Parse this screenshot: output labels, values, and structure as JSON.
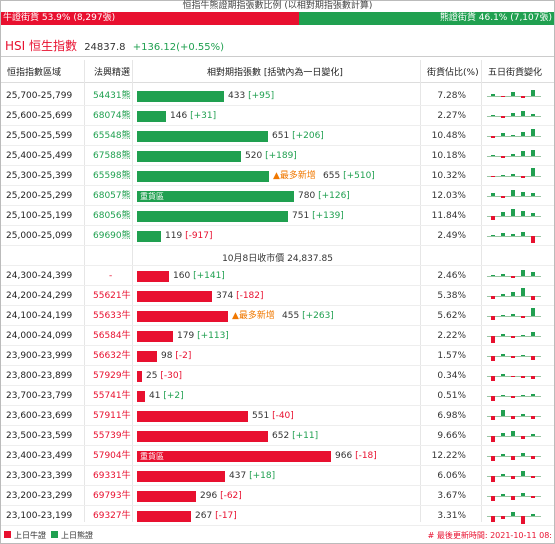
{
  "ratio": {
    "title": "恒指牛熊證期指張數比例 (以相對期指張數計算)",
    "bull_label": "牛證街貨 53.9% (8,297張)",
    "bear_label": "熊證街貨 46.1% (7,107張)",
    "bull_pct": 53.9,
    "colors": {
      "bull": "#e8102f",
      "bear": "#20a050"
    }
  },
  "index": {
    "name": "HSI 恒生指數",
    "value": "24837.8",
    "change": "+136.12(+0.55%)"
  },
  "headers": {
    "range": "恒指指數區域",
    "warrant": "法興精選",
    "contracts": "相對期指張數 [括號內為一日變化]",
    "ratio": "街貨佔比(%)",
    "trend": "五日街貨變化"
  },
  "close_label": "10月8日收市價 24,837.85",
  "bear_rows": [
    {
      "range": "25,700-25,799",
      "warrant": "54431熊",
      "qty": "433",
      "delta": "[+95]",
      "ratio": "7.28%",
      "bar": 433,
      "mini": [
        2,
        -1,
        4,
        -2,
        6
      ]
    },
    {
      "range": "25,600-25,699",
      "warrant": "68074熊",
      "qty": "146",
      "delta": "[+31]",
      "ratio": "2.27%",
      "bar": 146,
      "mini": [
        1,
        -2,
        3,
        5,
        2
      ]
    },
    {
      "range": "25,500-25,599",
      "warrant": "65548熊",
      "qty": "651",
      "delta": "[+206]",
      "ratio": "10.48%",
      "bar": 651,
      "mini": [
        -2,
        3,
        1,
        4,
        7
      ]
    },
    {
      "range": "25,400-25,499",
      "warrant": "67588熊",
      "qty": "520",
      "delta": "[+189]",
      "ratio": "10.18%",
      "bar": 520,
      "mini": [
        1,
        -2,
        2,
        5,
        6
      ]
    },
    {
      "range": "25,300-25,399",
      "warrant": "65598熊",
      "qty": "655",
      "delta": "[+510]",
      "ratio": "10.32%",
      "bar": 655,
      "tag": "▲最多新增",
      "mini": [
        -1,
        1,
        2,
        -2,
        8
      ]
    },
    {
      "range": "25,200-25,299",
      "warrant": "68057熊",
      "qty": "780",
      "delta": "[+126]",
      "ratio": "12.03%",
      "bar": 780,
      "heavy": "重貨區",
      "mini": [
        3,
        -2,
        6,
        4,
        3
      ]
    },
    {
      "range": "25,100-25,199",
      "warrant": "68056熊",
      "qty": "751",
      "delta": "[+139]",
      "ratio": "11.84%",
      "bar": 751,
      "mini": [
        -4,
        4,
        7,
        5,
        3
      ]
    },
    {
      "range": "25,000-25,099",
      "warrant": "69690熊",
      "qty": "119",
      "delta": "[-917]",
      "ratio": "2.49%",
      "bar": 119,
      "mini": [
        1,
        3,
        2,
        4,
        -7
      ]
    }
  ],
  "bull_rows": [
    {
      "range": "24,300-24,399",
      "warrant": "-",
      "qty": "160",
      "delta": "[+141]",
      "ratio": "2.46%",
      "bar": 160,
      "mini": [
        1,
        2,
        -2,
        6,
        4
      ]
    },
    {
      "range": "24,200-24,299",
      "warrant": "55621牛",
      "qty": "374",
      "delta": "[-182]",
      "ratio": "5.38%",
      "bar": 374,
      "mini": [
        -3,
        2,
        4,
        8,
        -4
      ]
    },
    {
      "range": "24,100-24,199",
      "warrant": "55633牛",
      "qty": "455",
      "delta": "[+263]",
      "ratio": "5.62%",
      "bar": 455,
      "tag": "▲最多新增",
      "mini": [
        -4,
        1,
        2,
        -2,
        8
      ]
    },
    {
      "range": "24,000-24,099",
      "warrant": "56584牛",
      "qty": "179",
      "delta": "[+113]",
      "ratio": "2.22%",
      "bar": 179,
      "mini": [
        -7,
        2,
        -2,
        1,
        4
      ]
    },
    {
      "range": "23,900-23,999",
      "warrant": "56632牛",
      "qty": "98",
      "delta": "[-2]",
      "ratio": "1.57%",
      "bar": 98,
      "mini": [
        -5,
        2,
        -2,
        1,
        -4
      ]
    },
    {
      "range": "23,800-23,899",
      "warrant": "57929牛",
      "qty": "25",
      "delta": "[-30]",
      "ratio": "0.34%",
      "bar": 25,
      "mini": [
        -5,
        2,
        -1,
        -2,
        -3
      ]
    },
    {
      "range": "23,700-23,799",
      "warrant": "55741牛",
      "qty": "41",
      "delta": "[+2]",
      "ratio": "0.51%",
      "bar": 41,
      "mini": [
        -5,
        1,
        -2,
        1,
        2
      ]
    },
    {
      "range": "23,600-23,699",
      "warrant": "57911牛",
      "qty": "551",
      "delta": "[-40]",
      "ratio": "6.98%",
      "bar": 551,
      "mini": [
        -4,
        6,
        -3,
        2,
        -3
      ]
    },
    {
      "range": "23,500-23,599",
      "warrant": "55739牛",
      "qty": "652",
      "delta": "[+11]",
      "ratio": "9.66%",
      "bar": 652,
      "mini": [
        -6,
        3,
        5,
        -3,
        2
      ]
    },
    {
      "range": "23,400-23,499",
      "warrant": "57904牛",
      "qty": "966",
      "delta": "[-18]",
      "ratio": "12.22%",
      "bar": 966,
      "heavy": "重貨區",
      "mini": [
        -5,
        2,
        -4,
        3,
        -3
      ]
    },
    {
      "range": "23,300-23,399",
      "warrant": "69331牛",
      "qty": "437",
      "delta": "[+18]",
      "ratio": "6.06%",
      "bar": 437,
      "mini": [
        -6,
        2,
        -3,
        5,
        -2
      ]
    },
    {
      "range": "23,200-23,299",
      "warrant": "69793牛",
      "qty": "296",
      "delta": "[-62]",
      "ratio": "3.67%",
      "bar": 296,
      "mini": [
        -5,
        2,
        -4,
        3,
        -2
      ]
    },
    {
      "range": "23,100-23,199",
      "warrant": "69327牛",
      "qty": "267",
      "delta": "[-17]",
      "ratio": "3.31%",
      "bar": 267,
      "mini": [
        -6,
        -3,
        4,
        -8,
        2
      ]
    }
  ],
  "footer": {
    "legend_bull": "上日牛證",
    "legend_bear": "上日熊證",
    "updated": "# 最後更新時間: 2021-10-11 08:"
  }
}
